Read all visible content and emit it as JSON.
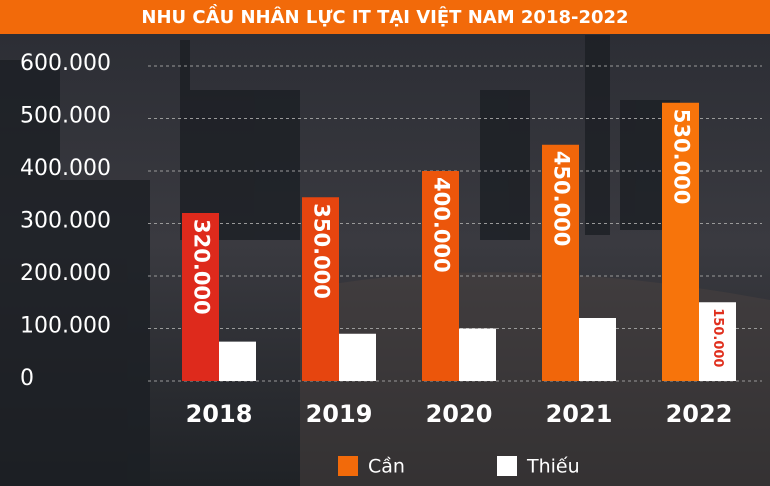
{
  "chart_data": {
    "type": "bar",
    "title": "NHU CẦU NHÂN LỰC IT TẠI VIỆT NAM 2018-2022",
    "categories": [
      "2018",
      "2019",
      "2020",
      "2021",
      "2022"
    ],
    "series": [
      {
        "name": "Cần",
        "color": "#f26a0a",
        "colors": [
          "#de2a1c",
          "#e6450f",
          "#ec560b",
          "#f1660a",
          "#f7740b"
        ],
        "values": [
          320000,
          350000,
          400000,
          450000,
          530000
        ],
        "value_labels": [
          "320.000",
          "350.000",
          "400.000",
          "450.000",
          "530.000"
        ]
      },
      {
        "name": "Thiếu",
        "color": "#ffffff",
        "values": [
          75000,
          90000,
          100000,
          120000,
          150000
        ],
        "value_labels": [
          null,
          null,
          null,
          null,
          "150.000"
        ]
      }
    ],
    "ylim": [
      0,
      600000
    ],
    "yticks": [
      {
        "value": 0,
        "label": "0"
      },
      {
        "value": 100000,
        "label": "100.000"
      },
      {
        "value": 200000,
        "label": "200.000"
      },
      {
        "value": 300000,
        "label": "300.000"
      },
      {
        "value": 400000,
        "label": "400.000"
      },
      {
        "value": 500000,
        "label": "500.000"
      },
      {
        "value": 600000,
        "label": "600.000"
      }
    ],
    "grid": true
  }
}
